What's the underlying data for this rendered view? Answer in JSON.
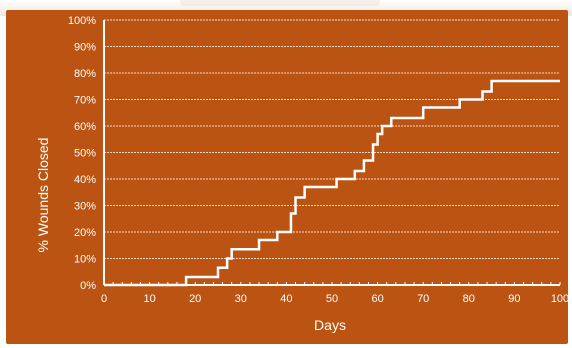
{
  "chart_data": {
    "type": "line",
    "step": true,
    "title": "",
    "xlabel": "Days",
    "ylabel": "% Wounds Closed",
    "xlim": [
      0,
      100
    ],
    "ylim": [
      0,
      100
    ],
    "grid": true,
    "xticks": [
      "0",
      "10",
      "20",
      "30",
      "40",
      "50",
      "60",
      "70",
      "80",
      "90",
      "100"
    ],
    "yticks": [
      "0%",
      "10%",
      "20%",
      "30%",
      "40%",
      "50%",
      "60%",
      "70%",
      "80%",
      "90%",
      "100%"
    ],
    "series": [
      {
        "x": [
          0,
          18,
          25,
          27,
          28,
          34,
          38,
          41,
          42,
          44,
          51,
          55,
          57,
          59,
          60,
          61,
          63,
          70,
          78,
          83,
          85,
          100
        ],
        "y": [
          0,
          3,
          6.5,
          10,
          13.5,
          17,
          20,
          27,
          33,
          37,
          40,
          43,
          47,
          53,
          57,
          60,
          63,
          67,
          70,
          73,
          77,
          77
        ]
      }
    ],
    "colors": {
      "background": "#bb5312",
      "line": "#ffffff",
      "grid": "#f3d9c6"
    }
  }
}
